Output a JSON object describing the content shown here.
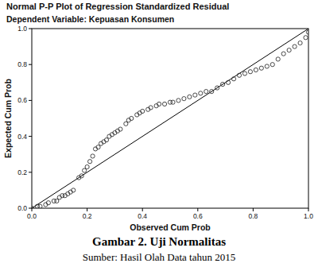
{
  "chart_data": {
    "type": "scatter",
    "title": "Normal P-P Plot of Regression Standardized Residual",
    "subtitle": "Dependent Variable: Kepuasan Konsumen",
    "x_label": "Observed Cum Prob",
    "y_label": "Expected Cum Prob",
    "x": [
      0.0,
      0.02,
      0.03,
      0.05,
      0.06,
      0.08,
      0.09,
      0.1,
      0.11,
      0.12,
      0.13,
      0.14,
      0.15,
      0.17,
      0.18,
      0.19,
      0.2,
      0.21,
      0.22,
      0.23,
      0.24,
      0.25,
      0.26,
      0.27,
      0.28,
      0.29,
      0.3,
      0.31,
      0.32,
      0.34,
      0.35,
      0.36,
      0.38,
      0.39,
      0.4,
      0.42,
      0.43,
      0.45,
      0.46,
      0.48,
      0.5,
      0.51,
      0.53,
      0.55,
      0.57,
      0.59,
      0.61,
      0.63,
      0.65,
      0.67,
      0.69,
      0.71,
      0.73,
      0.75,
      0.77,
      0.79,
      0.81,
      0.83,
      0.85,
      0.87,
      0.89,
      0.91,
      0.93,
      0.95,
      0.97,
      0.99,
      1.0
    ],
    "values": [
      0.0,
      0.01,
      0.01,
      0.02,
      0.03,
      0.04,
      0.04,
      0.06,
      0.07,
      0.07,
      0.08,
      0.09,
      0.1,
      0.17,
      0.18,
      0.21,
      0.23,
      0.26,
      0.29,
      0.33,
      0.34,
      0.36,
      0.37,
      0.38,
      0.4,
      0.41,
      0.42,
      0.43,
      0.44,
      0.47,
      0.49,
      0.5,
      0.52,
      0.53,
      0.54,
      0.55,
      0.56,
      0.57,
      0.58,
      0.58,
      0.59,
      0.59,
      0.6,
      0.61,
      0.62,
      0.63,
      0.64,
      0.65,
      0.65,
      0.67,
      0.69,
      0.7,
      0.72,
      0.74,
      0.75,
      0.76,
      0.77,
      0.78,
      0.79,
      0.8,
      0.83,
      0.86,
      0.88,
      0.9,
      0.92,
      0.95,
      0.98
    ],
    "reference_line": {
      "x": [
        0,
        1
      ],
      "values": [
        0,
        1
      ]
    },
    "marker": "circle",
    "color": "#333333",
    "xlim": [
      0,
      1
    ],
    "ylim": [
      0,
      1
    ],
    "xticks": [
      {
        "value": 0,
        "label": "0.0"
      },
      {
        "value": 0.2,
        "label": "0.2"
      },
      {
        "value": 0.4,
        "label": "0.4"
      },
      {
        "value": 0.6,
        "label": "0.6"
      },
      {
        "value": 0.8,
        "label": "0.8"
      },
      {
        "value": 1,
        "label": "1.0"
      }
    ],
    "yticks": [
      {
        "value": 0,
        "label": "0.0"
      },
      {
        "value": 0.2,
        "label": "0.2"
      },
      {
        "value": 0.4,
        "label": "0.4"
      },
      {
        "value": 0.6,
        "label": "0.6"
      },
      {
        "value": 0.8,
        "label": "0.8"
      },
      {
        "value": 1,
        "label": "1.0"
      }
    ]
  },
  "figure": {
    "caption": "Gambar 2. Uji Normalitas",
    "source": "Sumber: Hasil Olah Data tahun 2015"
  }
}
